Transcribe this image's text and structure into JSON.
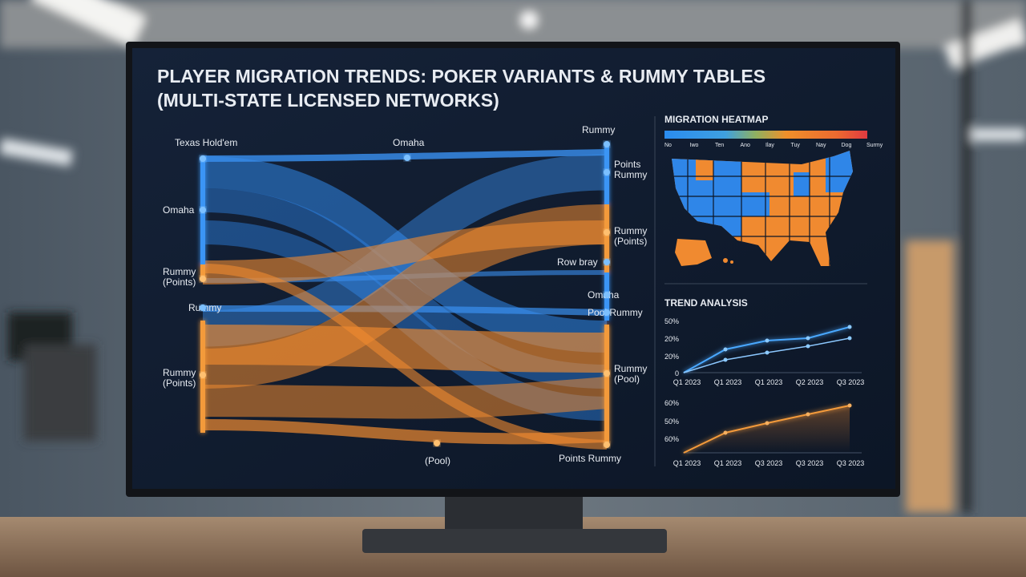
{
  "header": {
    "title_lines": [
      "PLAYER MIGRATION TRENDS: POKER VARIANTS & RUMMY TABLES",
      "(MULTI-STATE LICENSED NETWORKS)"
    ]
  },
  "sankey": {
    "nodes": [
      {
        "label": [
          "Texas Hold'em"
        ]
      },
      {
        "label": [
          "Omaha"
        ]
      },
      {
        "label": [
          "Rummy",
          "(Points)"
        ]
      },
      {
        "label": [
          "Rummy"
        ]
      },
      {
        "label": [
          "Rummy",
          "(Points)"
        ]
      },
      {
        "label": [
          "Omaha"
        ]
      },
      {
        "label": [
          "(Pool)"
        ]
      },
      {
        "label": [
          "Rummy"
        ]
      },
      {
        "label": [
          "Points",
          "Rummy"
        ]
      },
      {
        "label": [
          "Rummy",
          "(Points)"
        ]
      },
      {
        "label": [
          "Row bray"
        ]
      },
      {
        "label": [
          "Omaha"
        ]
      },
      {
        "label": [
          "Pool Rummy"
        ]
      },
      {
        "label": [
          "Rummy",
          "(Pool)"
        ]
      },
      {
        "label": [
          "Points Rummy"
        ]
      }
    ]
  },
  "heatmap": {
    "title": "MIGRATION HEATMAP",
    "legend_labels": [
      "No",
      "Iwo",
      "Ten",
      "Ano",
      "Ilay",
      "Tuy",
      "Nay",
      "Dog",
      "Surmy"
    ]
  },
  "trend": {
    "title": "TREND ANALYSIS",
    "panels": [
      {
        "y_labels": [
          "50%",
          "20%",
          "20%",
          "0"
        ],
        "x_labels": [
          "Q1 2023",
          "Q1 2023",
          "Q1 2023",
          "Q2 2023",
          "Q3 2023"
        ]
      },
      {
        "y_labels": [
          "60%",
          "50%",
          "60%"
        ],
        "x_labels": [
          "Q1 2023",
          "Q1 2023",
          "Q3 2023",
          "Q3 2023",
          "Q3 2023"
        ]
      }
    ]
  }
}
